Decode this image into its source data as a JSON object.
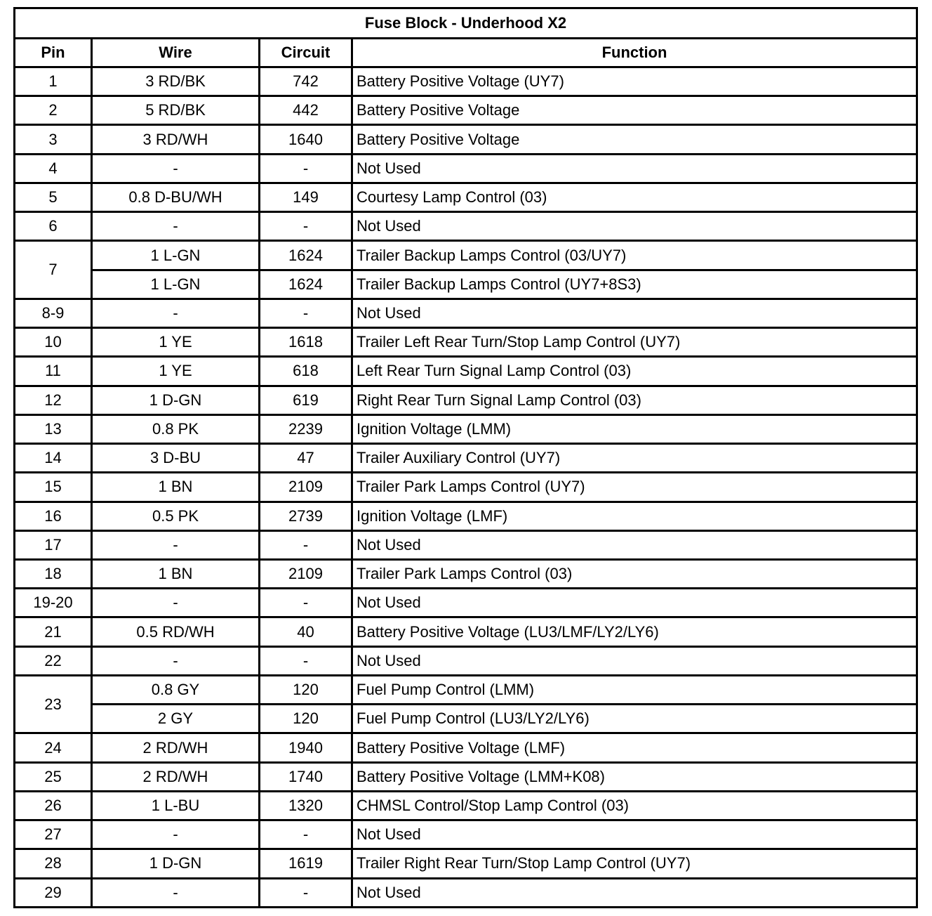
{
  "title": "Fuse Block - Underhood X2",
  "headers": {
    "pin": "Pin",
    "wire": "Wire",
    "circuit": "Circuit",
    "function": "Function"
  },
  "rows": [
    {
      "pin": "1",
      "entries": [
        {
          "wire": "3 RD/BK",
          "circuit": "742",
          "function": "Battery Positive Voltage (UY7)"
        }
      ]
    },
    {
      "pin": "2",
      "entries": [
        {
          "wire": "5 RD/BK",
          "circuit": "442",
          "function": "Battery Positive Voltage"
        }
      ]
    },
    {
      "pin": "3",
      "entries": [
        {
          "wire": "3 RD/WH",
          "circuit": "1640",
          "function": "Battery Positive Voltage"
        }
      ]
    },
    {
      "pin": "4",
      "entries": [
        {
          "wire": "-",
          "circuit": "-",
          "function": "Not Used"
        }
      ]
    },
    {
      "pin": "5",
      "entries": [
        {
          "wire": "0.8 D-BU/WH",
          "circuit": "149",
          "function": "Courtesy Lamp Control (03)"
        }
      ]
    },
    {
      "pin": "6",
      "entries": [
        {
          "wire": "-",
          "circuit": "-",
          "function": "Not Used"
        }
      ]
    },
    {
      "pin": "7",
      "entries": [
        {
          "wire": "1 L-GN",
          "circuit": "1624",
          "function": "Trailer Backup Lamps Control (03/UY7)"
        },
        {
          "wire": "1 L-GN",
          "circuit": "1624",
          "function": "Trailer Backup Lamps Control (UY7+8S3)"
        }
      ]
    },
    {
      "pin": "8-9",
      "entries": [
        {
          "wire": "-",
          "circuit": "-",
          "function": "Not Used"
        }
      ]
    },
    {
      "pin": "10",
      "entries": [
        {
          "wire": "1 YE",
          "circuit": "1618",
          "function": "Trailer Left Rear Turn/Stop Lamp Control (UY7)"
        }
      ]
    },
    {
      "pin": "11",
      "entries": [
        {
          "wire": "1 YE",
          "circuit": "618",
          "function": "Left Rear Turn Signal Lamp Control (03)"
        }
      ]
    },
    {
      "pin": "12",
      "entries": [
        {
          "wire": "1 D-GN",
          "circuit": "619",
          "function": "Right Rear Turn Signal Lamp Control (03)"
        }
      ]
    },
    {
      "pin": "13",
      "entries": [
        {
          "wire": "0.8 PK",
          "circuit": "2239",
          "function": "Ignition Voltage (LMM)"
        }
      ]
    },
    {
      "pin": "14",
      "entries": [
        {
          "wire": "3 D-BU",
          "circuit": "47",
          "function": "Trailer Auxiliary Control (UY7)"
        }
      ]
    },
    {
      "pin": "15",
      "entries": [
        {
          "wire": "1 BN",
          "circuit": "2109",
          "function": "Trailer Park Lamps Control (UY7)"
        }
      ]
    },
    {
      "pin": "16",
      "entries": [
        {
          "wire": "0.5 PK",
          "circuit": "2739",
          "function": "Ignition Voltage (LMF)"
        }
      ]
    },
    {
      "pin": "17",
      "entries": [
        {
          "wire": "-",
          "circuit": "-",
          "function": "Not Used"
        }
      ]
    },
    {
      "pin": "18",
      "entries": [
        {
          "wire": "1 BN",
          "circuit": "2109",
          "function": "Trailer Park Lamps Control (03)"
        }
      ]
    },
    {
      "pin": "19-20",
      "entries": [
        {
          "wire": "-",
          "circuit": "-",
          "function": "Not Used"
        }
      ]
    },
    {
      "pin": "21",
      "entries": [
        {
          "wire": "0.5 RD/WH",
          "circuit": "40",
          "function": "Battery Positive Voltage (LU3/LMF/LY2/LY6)"
        }
      ]
    },
    {
      "pin": "22",
      "entries": [
        {
          "wire": "-",
          "circuit": "-",
          "function": "Not Used"
        }
      ]
    },
    {
      "pin": "23",
      "entries": [
        {
          "wire": "0.8 GY",
          "circuit": "120",
          "function": "Fuel Pump Control (LMM)"
        },
        {
          "wire": "2 GY",
          "circuit": "120",
          "function": "Fuel Pump Control (LU3/LY2/LY6)"
        }
      ]
    },
    {
      "pin": "24",
      "entries": [
        {
          "wire": "2 RD/WH",
          "circuit": "1940",
          "function": "Battery Positive Voltage (LMF)"
        }
      ]
    },
    {
      "pin": "25",
      "entries": [
        {
          "wire": "2 RD/WH",
          "circuit": "1740",
          "function": "Battery Positive Voltage (LMM+K08)"
        }
      ]
    },
    {
      "pin": "26",
      "entries": [
        {
          "wire": "1 L-BU",
          "circuit": "1320",
          "function": "CHMSL Control/Stop Lamp Control (03)"
        }
      ]
    },
    {
      "pin": "27",
      "entries": [
        {
          "wire": "-",
          "circuit": "-",
          "function": "Not Used"
        }
      ]
    },
    {
      "pin": "28",
      "entries": [
        {
          "wire": "1 D-GN",
          "circuit": "1619",
          "function": "Trailer Right Rear Turn/Stop Lamp Control (UY7)"
        }
      ]
    },
    {
      "pin": "29",
      "entries": [
        {
          "wire": "-",
          "circuit": "-",
          "function": "Not Used"
        }
      ]
    }
  ]
}
